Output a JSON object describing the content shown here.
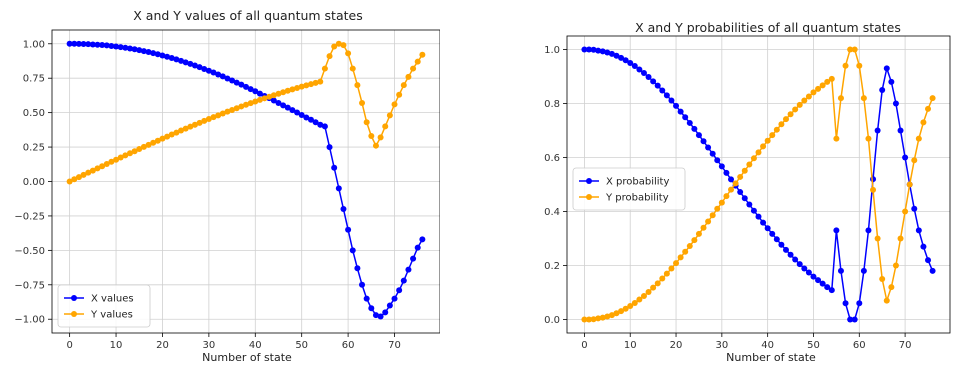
{
  "chart_data": [
    {
      "type": "line",
      "title": "X and Y values of all quantum states",
      "xlabel": "Number of state",
      "ylabel": "",
      "xlim": [
        -3.8,
        79.8
      ],
      "ylim": [
        -1.1,
        1.1
      ],
      "xticks": [
        0,
        10,
        20,
        30,
        40,
        50,
        60,
        70
      ],
      "yticks": [
        1.0,
        0.75,
        0.5,
        0.25,
        0.0,
        -0.25,
        -0.5,
        -0.75,
        -1.0
      ],
      "ytick_labels": [
        "1.00",
        "0.75",
        "0.50",
        "0.25",
        "0.00",
        "−0.25",
        "−0.50",
        "−0.75",
        "−1.00"
      ],
      "grid": true,
      "legend": "lower-left",
      "x": [
        0,
        1,
        2,
        3,
        4,
        5,
        6,
        7,
        8,
        9,
        10,
        11,
        12,
        13,
        14,
        15,
        16,
        17,
        18,
        19,
        20,
        21,
        22,
        23,
        24,
        25,
        26,
        27,
        28,
        29,
        30,
        31,
        32,
        33,
        34,
        35,
        36,
        37,
        38,
        39,
        40,
        41,
        42,
        43,
        44,
        45,
        46,
        47,
        48,
        49,
        50,
        51,
        52,
        53,
        54,
        55,
        56,
        57,
        58,
        59,
        60,
        61,
        62,
        63,
        64,
        65,
        66,
        67,
        68,
        69,
        70,
        71,
        72,
        73,
        74,
        75,
        76
      ],
      "series": [
        {
          "name": "X values",
          "color": "#0000ff",
          "values": [
            1.0,
            1.0,
            0.999,
            0.998,
            0.997,
            0.995,
            0.993,
            0.991,
            0.988,
            0.984,
            0.98,
            0.976,
            0.971,
            0.966,
            0.96,
            0.954,
            0.947,
            0.94,
            0.932,
            0.924,
            0.915,
            0.906,
            0.897,
            0.887,
            0.876,
            0.865,
            0.854,
            0.842,
            0.83,
            0.817,
            0.804,
            0.791,
            0.777,
            0.763,
            0.748,
            0.733,
            0.718,
            0.703,
            0.687,
            0.671,
            0.655,
            0.638,
            0.621,
            0.605,
            0.588,
            0.57,
            0.553,
            0.536,
            0.518,
            0.501,
            0.483,
            0.465,
            0.448,
            0.43,
            0.412,
            0.4,
            0.25,
            0.1,
            -0.05,
            -0.2,
            -0.35,
            -0.5,
            -0.63,
            -0.75,
            -0.85,
            -0.92,
            -0.97,
            -0.98,
            -0.95,
            -0.9,
            -0.85,
            -0.79,
            -0.72,
            -0.64,
            -0.56,
            -0.48,
            -0.42
          ]
        },
        {
          "name": "Y values",
          "color": "#ffa500",
          "values": [
            0.0,
            0.016,
            0.032,
            0.048,
            0.064,
            0.079,
            0.095,
            0.111,
            0.127,
            0.143,
            0.158,
            0.174,
            0.19,
            0.205,
            0.22,
            0.236,
            0.251,
            0.266,
            0.281,
            0.296,
            0.311,
            0.326,
            0.341,
            0.355,
            0.37,
            0.384,
            0.398,
            0.412,
            0.426,
            0.44,
            0.454,
            0.467,
            0.48,
            0.494,
            0.507,
            0.519,
            0.532,
            0.545,
            0.557,
            0.569,
            0.581,
            0.593,
            0.604,
            0.615,
            0.626,
            0.637,
            0.648,
            0.659,
            0.669,
            0.679,
            0.689,
            0.698,
            0.707,
            0.716,
            0.725,
            0.82,
            0.91,
            0.98,
            1.0,
            0.99,
            0.93,
            0.82,
            0.7,
            0.57,
            0.43,
            0.33,
            0.26,
            0.32,
            0.4,
            0.48,
            0.56,
            0.63,
            0.7,
            0.76,
            0.82,
            0.87,
            0.92
          ]
        }
      ]
    },
    {
      "type": "line",
      "title": "X and Y probabilities of all quantum states",
      "xlabel": "Number of state",
      "ylabel": "",
      "xlim": [
        -3.8,
        79.8
      ],
      "ylim": [
        -0.05,
        1.05
      ],
      "xticks": [
        0,
        10,
        20,
        30,
        40,
        50,
        60,
        70
      ],
      "yticks": [
        1.0,
        0.8,
        0.6,
        0.4,
        0.2,
        0.0
      ],
      "ytick_labels": [
        "1.0",
        "0.8",
        "0.6",
        "0.4",
        "0.2",
        "0.0"
      ],
      "grid": true,
      "legend": "center-left",
      "x": [
        0,
        1,
        2,
        3,
        4,
        5,
        6,
        7,
        8,
        9,
        10,
        11,
        12,
        13,
        14,
        15,
        16,
        17,
        18,
        19,
        20,
        21,
        22,
        23,
        24,
        25,
        26,
        27,
        28,
        29,
        30,
        31,
        32,
        33,
        34,
        35,
        36,
        37,
        38,
        39,
        40,
        41,
        42,
        43,
        44,
        45,
        46,
        47,
        48,
        49,
        50,
        51,
        52,
        53,
        54,
        55,
        56,
        57,
        58,
        59,
        60,
        61,
        62,
        63,
        64,
        65,
        66,
        67,
        68,
        69,
        70,
        71,
        72,
        73,
        74,
        75,
        76
      ],
      "series": [
        {
          "name": "X probability",
          "color": "#0000ff",
          "values": [
            1.0,
            1.0,
            0.999,
            0.996,
            0.993,
            0.989,
            0.984,
            0.977,
            0.969,
            0.96,
            0.95,
            0.939,
            0.926,
            0.913,
            0.898,
            0.882,
            0.866,
            0.848,
            0.83,
            0.811,
            0.791,
            0.77,
            0.749,
            0.728,
            0.706,
            0.683,
            0.66,
            0.637,
            0.614,
            0.59,
            0.567,
            0.543,
            0.519,
            0.496,
            0.472,
            0.449,
            0.426,
            0.403,
            0.381,
            0.359,
            0.338,
            0.317,
            0.297,
            0.277,
            0.258,
            0.24,
            0.222,
            0.205,
            0.189,
            0.174,
            0.159,
            0.146,
            0.133,
            0.12,
            0.109,
            0.33,
            0.18,
            0.06,
            0.0,
            0.0,
            0.06,
            0.18,
            0.33,
            0.52,
            0.7,
            0.85,
            0.93,
            0.88,
            0.8,
            0.7,
            0.6,
            0.5,
            0.41,
            0.33,
            0.27,
            0.22,
            0.18
          ]
        },
        {
          "name": "Y probability",
          "color": "#ffa500",
          "values": [
            0.0,
            0.0,
            0.001,
            0.004,
            0.007,
            0.011,
            0.016,
            0.023,
            0.031,
            0.04,
            0.05,
            0.061,
            0.074,
            0.087,
            0.102,
            0.118,
            0.134,
            0.152,
            0.17,
            0.189,
            0.209,
            0.23,
            0.251,
            0.272,
            0.294,
            0.317,
            0.34,
            0.363,
            0.386,
            0.41,
            0.433,
            0.457,
            0.481,
            0.504,
            0.528,
            0.551,
            0.574,
            0.597,
            0.619,
            0.641,
            0.662,
            0.683,
            0.703,
            0.723,
            0.742,
            0.76,
            0.778,
            0.795,
            0.811,
            0.826,
            0.841,
            0.854,
            0.867,
            0.88,
            0.891,
            0.67,
            0.82,
            0.94,
            1.0,
            1.0,
            0.94,
            0.82,
            0.67,
            0.48,
            0.3,
            0.15,
            0.07,
            0.12,
            0.2,
            0.3,
            0.4,
            0.5,
            0.59,
            0.67,
            0.73,
            0.78,
            0.82
          ]
        }
      ]
    }
  ]
}
